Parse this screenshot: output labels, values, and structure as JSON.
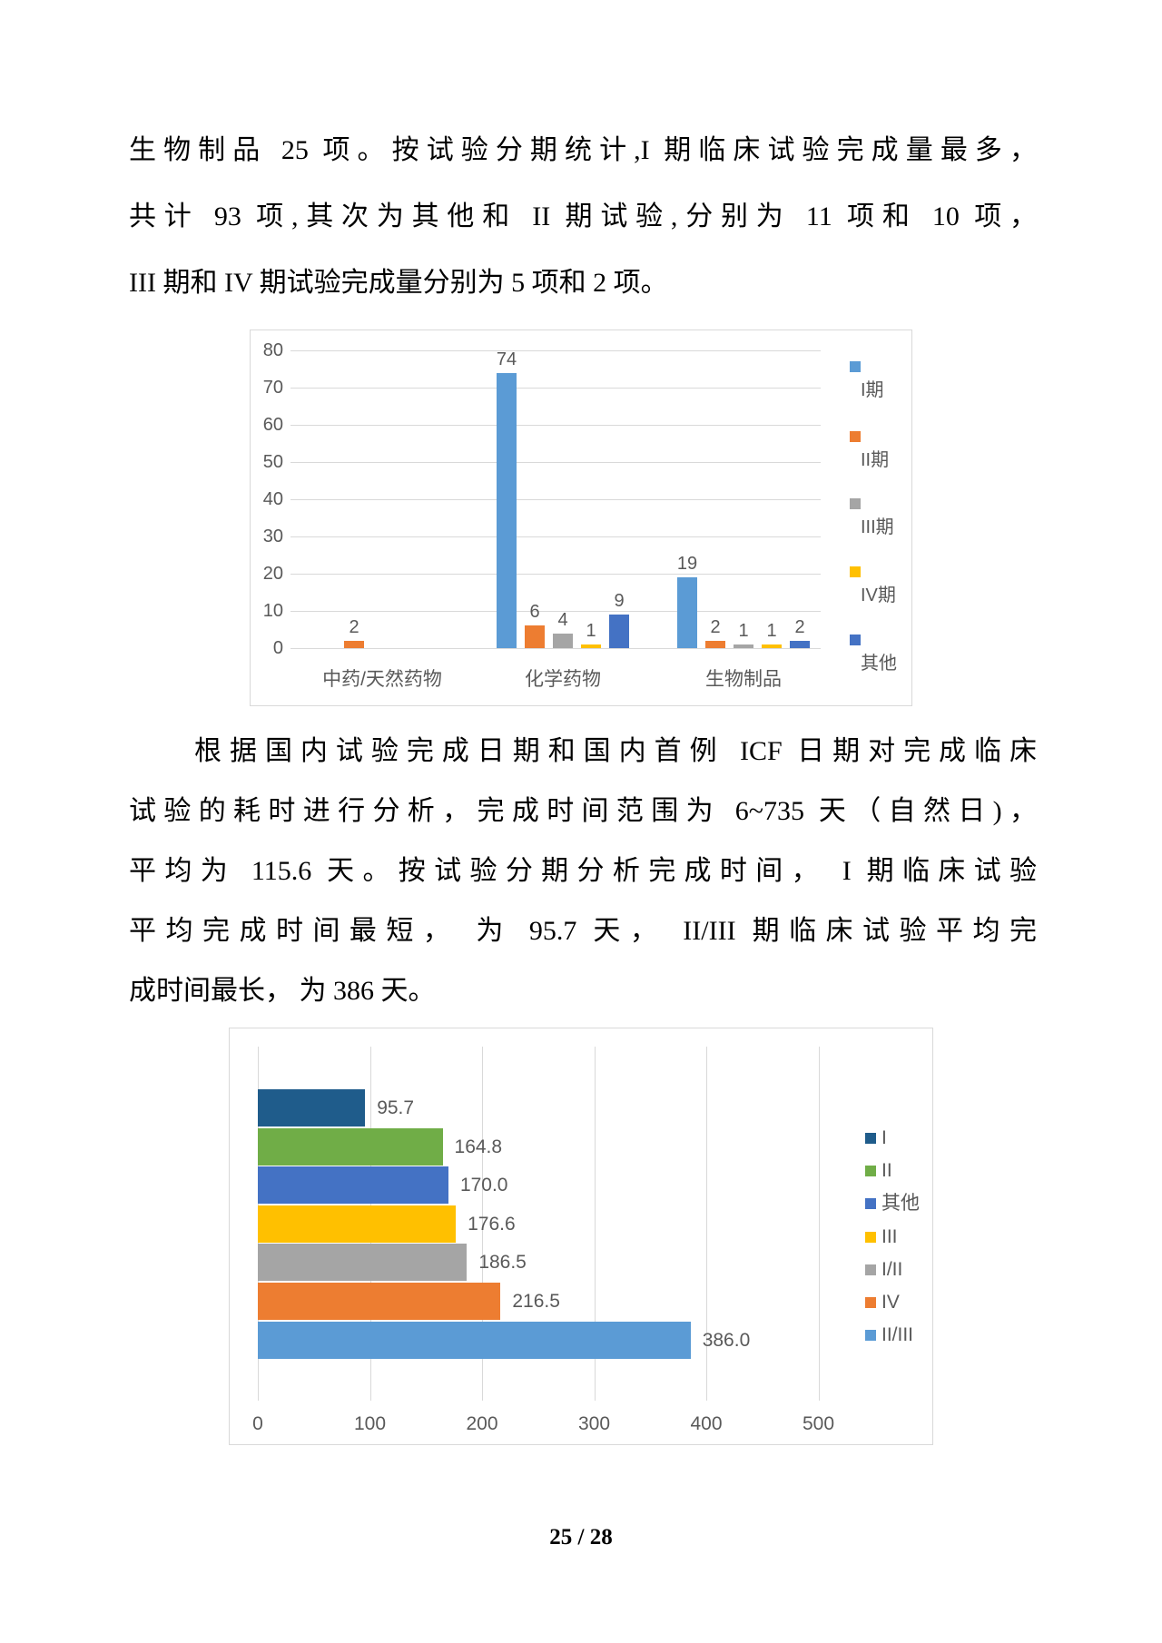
{
  "page": {
    "number_label": "25 / 28"
  },
  "paragraph1": {
    "lines": [
      "生物制品 25 项。按试验分期统计,I 期临床试验完成量最多，",
      "共计 93 项,其次为其他和 II 期试验,分别为 11 项和 10 项，",
      "III 期和 IV 期试验完成量分别为 5 项和 2 项。"
    ]
  },
  "paragraph2": {
    "lines": [
      "根据国内试验完成日期和国内首例 ICF 日期对完成临床",
      "试验的耗时进行分析，完成时间范围为 6~735 天（自然日)，",
      "平均为 115.6 天。按试验分期分析完成时间， I 期临床试验",
      "平均完成时间最短， 为 95.7 天， II/III 期临床试验平均完",
      "成时间最长， 为 386 天。"
    ]
  },
  "chart_data": [
    {
      "type": "bar",
      "title": "",
      "xlabel": "",
      "ylabel": "",
      "categories": [
        "中药/天然药物",
        "化学药物",
        "生物制品"
      ],
      "series": [
        {
          "name": "I期",
          "color": "#5B9BD5",
          "values": [
            0,
            74,
            19
          ]
        },
        {
          "name": "II期",
          "color": "#ED7D31",
          "values": [
            2,
            6,
            2
          ]
        },
        {
          "name": "III期",
          "color": "#A5A5A5",
          "values": [
            0,
            4,
            1
          ]
        },
        {
          "name": "IV期",
          "color": "#FFC000",
          "values": [
            0,
            1,
            1
          ]
        },
        {
          "name": "其他",
          "color": "#4472C4",
          "values": [
            0,
            9,
            2
          ]
        }
      ],
      "ylim": [
        0,
        80
      ],
      "ytick_step": 10,
      "grid": true,
      "data_labels": true,
      "legend_position": "right"
    },
    {
      "type": "bar-horizontal",
      "title": "",
      "xlabel": "",
      "ylabel": "",
      "categories": [
        "I",
        "II",
        "其他",
        "III",
        "I/II",
        "IV",
        "II/III"
      ],
      "values": [
        95.7,
        164.8,
        170.0,
        176.6,
        186.5,
        216.5,
        386.0
      ],
      "value_labels": [
        "95.7",
        "164.8",
        "170.0",
        "176.6",
        "186.5",
        "216.5",
        "386.0"
      ],
      "colors": [
        "#1F5C8B",
        "#70AD47",
        "#4472C4",
        "#FFC000",
        "#A5A5A5",
        "#ED7D31",
        "#5B9BD5"
      ],
      "xlim": [
        0,
        600
      ],
      "xticks": [
        0,
        100,
        200,
        300,
        400,
        500
      ],
      "grid": true,
      "legend_position": "right"
    }
  ]
}
